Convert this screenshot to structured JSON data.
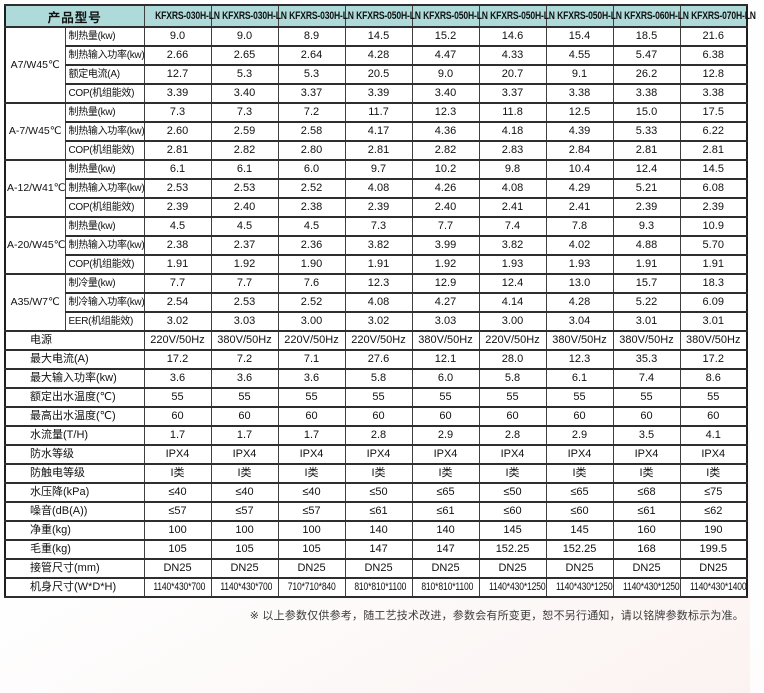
{
  "colors": {
    "header_bg": "#aedbd9",
    "grid_line": "#3f3f3f",
    "outer_border": "#1e1e1e",
    "cell_bg": "#ffffff"
  },
  "table": {
    "header_label": "产品型号",
    "models": [
      "KFXRS-030H-LN",
      "KFXRS-030H-LN",
      "KFXRS-030H-LN",
      "KFXRS-050H-LN",
      "KFXRS-050H-LN",
      "KFXRS-050H-LN",
      "KFXRS-050H-LN",
      "KFXRS-060H-LN",
      "KFXRS-070H-LN"
    ],
    "groups": [
      {
        "condition": "A7/W45℃",
        "rows": [
          {
            "label": "制热量(kw)",
            "values": [
              "9.0",
              "9.0",
              "8.9",
              "14.5",
              "15.2",
              "14.6",
              "15.4",
              "18.5",
              "21.6"
            ]
          },
          {
            "label": "制热输入功率(kw)",
            "values": [
              "2.66",
              "2.65",
              "2.64",
              "4.28",
              "4.47",
              "4.33",
              "4.55",
              "5.47",
              "6.38"
            ]
          },
          {
            "label": "额定电流(A)",
            "values": [
              "12.7",
              "5.3",
              "5.3",
              "20.5",
              "9.0",
              "20.7",
              "9.1",
              "26.2",
              "12.8"
            ]
          },
          {
            "label": "COP(机组能效)",
            "values": [
              "3.39",
              "3.40",
              "3.37",
              "3.39",
              "3.40",
              "3.37",
              "3.38",
              "3.38",
              "3.38"
            ]
          }
        ]
      },
      {
        "condition": "A-7/W45℃",
        "rows": [
          {
            "label": "制热量(kw)",
            "values": [
              "7.3",
              "7.3",
              "7.2",
              "11.7",
              "12.3",
              "11.8",
              "12.5",
              "15.0",
              "17.5"
            ]
          },
          {
            "label": "制热输入功率(kw)",
            "values": [
              "2.60",
              "2.59",
              "2.58",
              "4.17",
              "4.36",
              "4.18",
              "4.39",
              "5.33",
              "6.22"
            ]
          },
          {
            "label": "COP(机组能效)",
            "values": [
              "2.81",
              "2.82",
              "2.80",
              "2.81",
              "2.82",
              "2.83",
              "2.84",
              "2.81",
              "2.81"
            ]
          }
        ]
      },
      {
        "condition": "A-12/W41℃",
        "rows": [
          {
            "label": "制热量(kw)",
            "values": [
              "6.1",
              "6.1",
              "6.0",
              "9.7",
              "10.2",
              "9.8",
              "10.4",
              "12.4",
              "14.5"
            ]
          },
          {
            "label": "制热输入功率(kw)",
            "values": [
              "2.53",
              "2.53",
              "2.52",
              "4.08",
              "4.26",
              "4.08",
              "4.29",
              "5.21",
              "6.08"
            ]
          },
          {
            "label": "COP(机组能效)",
            "values": [
              "2.39",
              "2.40",
              "2.38",
              "2.39",
              "2.40",
              "2.41",
              "2.41",
              "2.39",
              "2.39"
            ]
          }
        ]
      },
      {
        "condition": "A-20/W45℃",
        "rows": [
          {
            "label": "制热量(kw)",
            "values": [
              "4.5",
              "4.5",
              "4.5",
              "7.3",
              "7.7",
              "7.4",
              "7.8",
              "9.3",
              "10.9"
            ]
          },
          {
            "label": "制热输入功率(kw)",
            "values": [
              "2.38",
              "2.37",
              "2.36",
              "3.82",
              "3.99",
              "3.82",
              "4.02",
              "4.88",
              "5.70"
            ]
          },
          {
            "label": "COP(机组能效)",
            "values": [
              "1.91",
              "1.92",
              "1.90",
              "1.91",
              "1.92",
              "1.93",
              "1.93",
              "1.91",
              "1.91"
            ]
          }
        ]
      },
      {
        "condition": "A35/W7℃",
        "rows": [
          {
            "label": "制冷量(kw)",
            "values": [
              "7.7",
              "7.7",
              "7.6",
              "12.3",
              "12.9",
              "12.4",
              "13.0",
              "15.7",
              "18.3"
            ]
          },
          {
            "label": "制冷输入功率(kw)",
            "values": [
              "2.54",
              "2.53",
              "2.52",
              "4.08",
              "4.27",
              "4.14",
              "4.28",
              "5.22",
              "6.09"
            ]
          },
          {
            "label": "EER(机组能效)",
            "values": [
              "3.02",
              "3.03",
              "3.00",
              "3.02",
              "3.03",
              "3.00",
              "3.04",
              "3.01",
              "3.01"
            ]
          }
        ]
      }
    ],
    "spec_rows": [
      {
        "label": "电源",
        "values": [
          "220V/50Hz",
          "380V/50Hz",
          "220V/50Hz",
          "220V/50Hz",
          "380V/50Hz",
          "220V/50Hz",
          "380V/50Hz",
          "380V/50Hz",
          "380V/50Hz"
        ]
      },
      {
        "label": "最大电流(A)",
        "values": [
          "17.2",
          "7.2",
          "7.1",
          "27.6",
          "12.1",
          "28.0",
          "12.3",
          "35.3",
          "17.2"
        ]
      },
      {
        "label": "最大输入功率(kw)",
        "values": [
          "3.6",
          "3.6",
          "3.6",
          "5.8",
          "6.0",
          "5.8",
          "6.1",
          "7.4",
          "8.6"
        ]
      },
      {
        "label": "额定出水温度(℃)",
        "values": [
          "55",
          "55",
          "55",
          "55",
          "55",
          "55",
          "55",
          "55",
          "55"
        ]
      },
      {
        "label": "最高出水温度(℃)",
        "values": [
          "60",
          "60",
          "60",
          "60",
          "60",
          "60",
          "60",
          "60",
          "60"
        ]
      },
      {
        "label": "水流量(T/H)",
        "values": [
          "1.7",
          "1.7",
          "1.7",
          "2.8",
          "2.9",
          "2.8",
          "2.9",
          "3.5",
          "4.1"
        ]
      },
      {
        "label": "防水等级",
        "values": [
          "IPX4",
          "IPX4",
          "IPX4",
          "IPX4",
          "IPX4",
          "IPX4",
          "IPX4",
          "IPX4",
          "IPX4"
        ]
      },
      {
        "label": "防触电等级",
        "values": [
          "I类",
          "I类",
          "I类",
          "I类",
          "I类",
          "I类",
          "I类",
          "I类",
          "I类"
        ]
      },
      {
        "label": "水压降(kPa)",
        "values": [
          "≤40",
          "≤40",
          "≤40",
          "≤50",
          "≤65",
          "≤50",
          "≤65",
          "≤68",
          "≤75"
        ]
      },
      {
        "label": "噪音(dB(A))",
        "values": [
          "≤57",
          "≤57",
          "≤57",
          "≤61",
          "≤61",
          "≤60",
          "≤60",
          "≤61",
          "≤62"
        ]
      },
      {
        "label": "净重(kg)",
        "values": [
          "100",
          "100",
          "100",
          "140",
          "140",
          "145",
          "145",
          "160",
          "190"
        ]
      },
      {
        "label": "毛重(kg)",
        "values": [
          "105",
          "105",
          "105",
          "147",
          "147",
          "152.25",
          "152.25",
          "168",
          "199.5"
        ]
      },
      {
        "label": "接管尺寸(mm)",
        "values": [
          "DN25",
          "DN25",
          "DN25",
          "DN25",
          "DN25",
          "DN25",
          "DN25",
          "DN25",
          "DN25"
        ]
      },
      {
        "label": "机身尺寸(W*D*H)",
        "values": [
          "1140*430*700",
          "1140*430*700",
          "710*710*840",
          "810*810*1100",
          "810*810*1100",
          "1140*430*1250",
          "1140*430*1250",
          "1140*430*1250",
          "1140*430*1400"
        ]
      }
    ],
    "footnote": "※ 以上参数仅供参考，随工艺技术改进，参数会有所变更，恕不另行通知，请以铭牌参数标示为准。"
  }
}
